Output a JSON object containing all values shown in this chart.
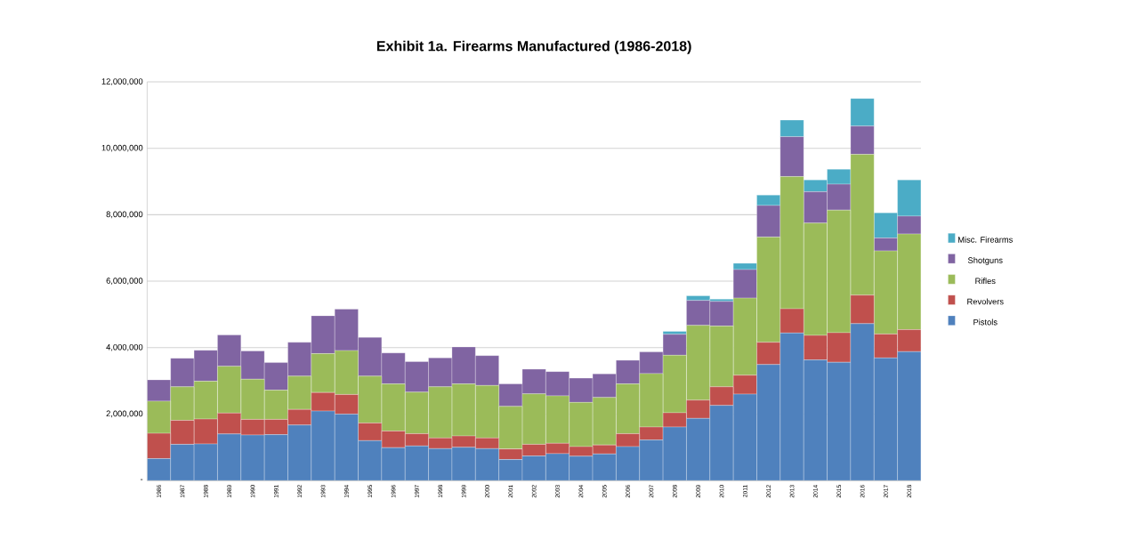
{
  "chart_data": {
    "type": "bar",
    "title": "Exhibit 1a. Firearms Manufactured (1986-2018)",
    "stacked": true,
    "categories": [
      "1986",
      "1987",
      "1988",
      "1989",
      "1990",
      "1991",
      "1992",
      "1993",
      "1994",
      "1995",
      "1996",
      "1997",
      "1998",
      "1999",
      "2000",
      "2001",
      "2002",
      "2003",
      "2004",
      "2005",
      "2006",
      "2007",
      "2008",
      "2009",
      "2010",
      "2011",
      "2012",
      "2013",
      "2014",
      "2015",
      "2016",
      "2017",
      "2018"
    ],
    "series": [
      {
        "name": "Pistols",
        "color": "#4f81bd",
        "values": [
          660000,
          1090000,
          1100000,
          1400000,
          1370000,
          1380000,
          1670000,
          2090000,
          2000000,
          1200000,
          990000,
          1040000,
          960000,
          1000000,
          960000,
          630000,
          740000,
          810000,
          730000,
          800000,
          1020000,
          1220000,
          1610000,
          1870000,
          2260000,
          2600000,
          3490000,
          4440000,
          3630000,
          3560000,
          4720000,
          3690000,
          3880000
        ]
      },
      {
        "name": "Revolvers",
        "color": "#c0504d",
        "values": [
          760000,
          720000,
          750000,
          630000,
          470000,
          460000,
          470000,
          560000,
          590000,
          530000,
          500000,
          370000,
          320000,
          340000,
          320000,
          320000,
          350000,
          310000,
          290000,
          270000,
          390000,
          390000,
          430000,
          550000,
          560000,
          570000,
          670000,
          730000,
          740000,
          890000,
          860000,
          720000,
          660000
        ]
      },
      {
        "name": "Rifles",
        "color": "#9bbb59",
        "values": [
          970000,
          1010000,
          1140000,
          1410000,
          1210000,
          880000,
          1000000,
          1170000,
          1320000,
          1410000,
          1420000,
          1250000,
          1540000,
          1570000,
          1580000,
          1280000,
          1520000,
          1430000,
          1330000,
          1430000,
          1500000,
          1610000,
          1730000,
          2250000,
          1830000,
          2320000,
          3170000,
          3980000,
          3380000,
          3690000,
          4240000,
          2500000,
          2880000
        ]
      },
      {
        "name": "Shotguns",
        "color": "#8064a2",
        "values": [
          640000,
          860000,
          930000,
          940000,
          850000,
          830000,
          1020000,
          1140000,
          1250000,
          1170000,
          930000,
          920000,
          870000,
          1110000,
          900000,
          680000,
          740000,
          730000,
          730000,
          710000,
          710000,
          650000,
          630000,
          750000,
          740000,
          860000,
          950000,
          1200000,
          940000,
          780000,
          850000,
          390000,
          540000
        ]
      },
      {
        "name": "Misc. Firearms",
        "color": "#4bacc6",
        "values": [
          null,
          null,
          null,
          null,
          null,
          null,
          null,
          null,
          null,
          null,
          null,
          null,
          null,
          null,
          null,
          null,
          null,
          null,
          null,
          null,
          null,
          null,
          90000,
          140000,
          70000,
          190000,
          310000,
          500000,
          360000,
          450000,
          830000,
          760000,
          1090000
        ]
      }
    ],
    "ylim": [
      0,
      12000000
    ],
    "yticks": [
      {
        "value": 0,
        "label": "-"
      },
      {
        "value": 2000000,
        "label": "2,000,000"
      },
      {
        "value": 4000000,
        "label": "4,000,000"
      },
      {
        "value": 6000000,
        "label": "6,000,000"
      },
      {
        "value": 8000000,
        "label": "8,000,000"
      },
      {
        "value": 10000000,
        "label": "10,000,000"
      },
      {
        "value": 12000000,
        "label": "12,000,000"
      }
    ],
    "grid": "y",
    "legend": "right"
  }
}
